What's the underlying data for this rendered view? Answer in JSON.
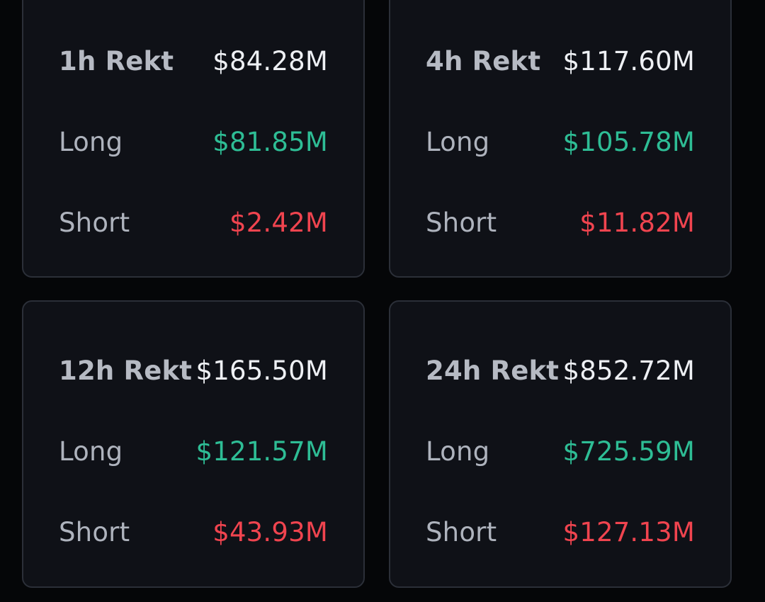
{
  "colors": {
    "background": "#050608",
    "card": "#0f1117",
    "card_border": "#2b2f38",
    "label": "#aeb3bd",
    "total": "#eef0f4",
    "long": "#2ebd95",
    "short": "#f0444f"
  },
  "cards": [
    {
      "title": "1h Rekt",
      "total": "$84.28M",
      "long_label": "Long",
      "long": "$81.85M",
      "short_label": "Short",
      "short": "$2.42M"
    },
    {
      "title": "4h Rekt",
      "total": "$117.60M",
      "long_label": "Long",
      "long": "$105.78M",
      "short_label": "Short",
      "short": "$11.82M"
    },
    {
      "title": "12h Rekt",
      "total": "$165.50M",
      "long_label": "Long",
      "long": "$121.57M",
      "short_label": "Short",
      "short": "$43.93M"
    },
    {
      "title": "24h Rekt",
      "total": "$852.72M",
      "long_label": "Long",
      "long": "$725.59M",
      "short_label": "Short",
      "short": "$127.13M"
    }
  ]
}
